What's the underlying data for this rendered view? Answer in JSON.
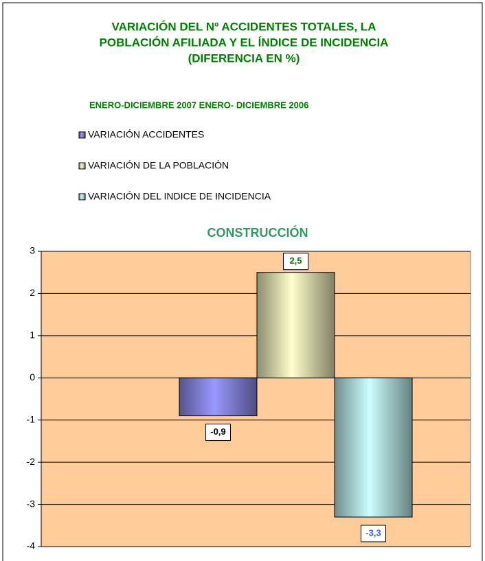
{
  "chart_data": {
    "type": "bar",
    "title_lines": [
      "VARIACIÓN DEL Nº ACCIDENTES TOTALES, LA",
      "POBLACIÓN AFILIADA Y EL ÍNDICE DE INCIDENCIA",
      "(DIFERENCIA EN %)"
    ],
    "subtitle": "ENERO-DICIEMBRE 2007 ENERO- DICIEMBRE 2006",
    "plot_title": "CONSTRUCCIÓN",
    "categories": [
      null
    ],
    "series": [
      {
        "name": "VARIACIÓN ACCIDENTES",
        "color": "#9999ff",
        "values": [
          -0.9
        ],
        "value_labels": [
          "-0,9"
        ],
        "label_color": "#000000"
      },
      {
        "name": "VARIACIÓN DE LA POBLACIÓN",
        "color": "#ffffcc",
        "values": [
          2.5
        ],
        "value_labels": [
          "2,5"
        ],
        "label_color": "#008000"
      },
      {
        "name": "VARIACIÓN DEL INDICE DE INCIDENCIA",
        "color": "#ccffff",
        "values": [
          -3.3
        ],
        "value_labels": [
          "-3,3"
        ],
        "label_color": "#3366ff"
      }
    ],
    "ylim": [
      -4,
      3
    ],
    "yticks": [
      -4,
      -3,
      -2,
      -1,
      0,
      1,
      2,
      3
    ],
    "grid": true,
    "plot_background": "#ffcc99"
  }
}
